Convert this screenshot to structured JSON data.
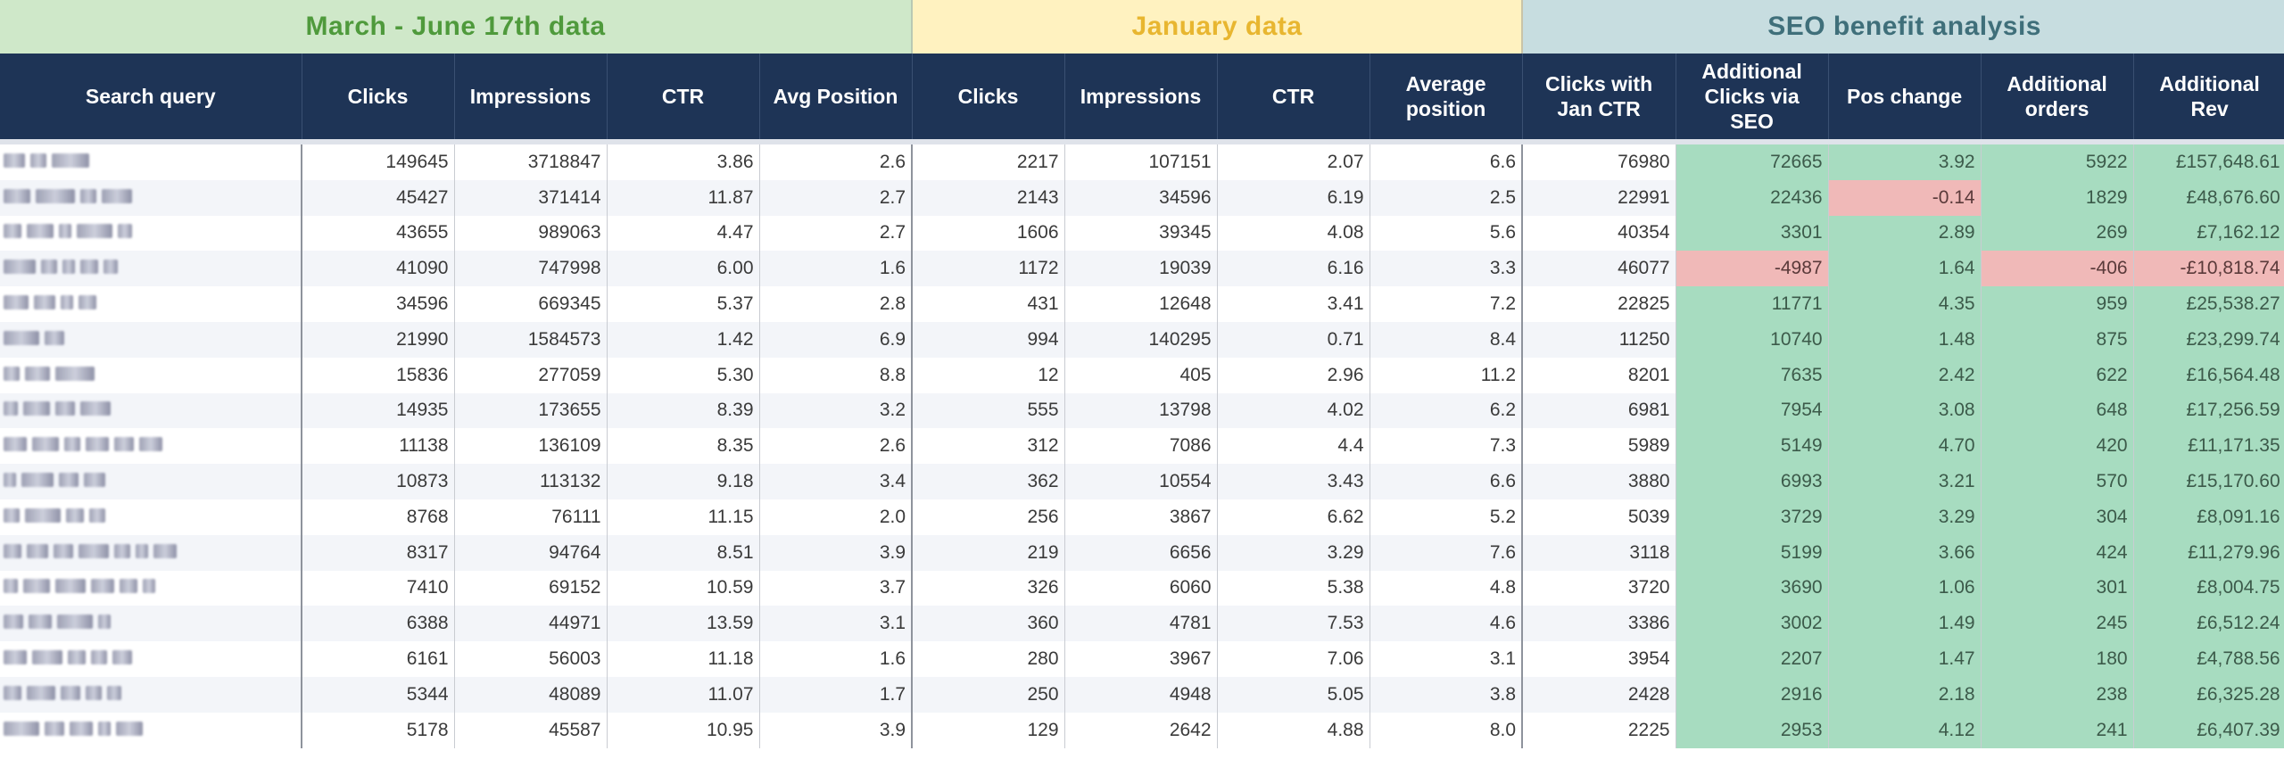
{
  "sections": {
    "march": "March - June 17th data",
    "january": "January data",
    "seo": "SEO benefit analysis"
  },
  "headers": [
    "Search query",
    "Clicks",
    "Impressions",
    "CTR",
    "Avg Position",
    "Clicks",
    "Impressions",
    "CTR",
    "Average position",
    "Clicks with Jan CTR",
    "Additional Clicks via SEO",
    "Pos change",
    "Additional orders",
    "Additional Rev"
  ],
  "colors": {
    "header_bg": "#1e3456",
    "positive": "#a7dcc0",
    "negative": "#f0b9b8"
  },
  "query_note": "Search query text is redacted (blurred) in the screenshot",
  "rows": [
    {
      "mc": "149645",
      "mi": "3718847",
      "mctr": "3.86",
      "mpos": "2.6",
      "jc": "2217",
      "ji": "107151",
      "jctr": "2.07",
      "jpos": "6.6",
      "cj": "76980",
      "add": "72665",
      "pos": "3.92",
      "ord": "5922",
      "rev": "£157,648.61",
      "add_neg": false,
      "pos_neg": false,
      "ord_neg": false,
      "rev_neg": false
    },
    {
      "mc": "45427",
      "mi": "371414",
      "mctr": "11.87",
      "mpos": "2.7",
      "jc": "2143",
      "ji": "34596",
      "jctr": "6.19",
      "jpos": "2.5",
      "cj": "22991",
      "add": "22436",
      "pos": "-0.14",
      "ord": "1829",
      "rev": "£48,676.60",
      "add_neg": false,
      "pos_neg": true,
      "ord_neg": false,
      "rev_neg": false
    },
    {
      "mc": "43655",
      "mi": "989063",
      "mctr": "4.47",
      "mpos": "2.7",
      "jc": "1606",
      "ji": "39345",
      "jctr": "4.08",
      "jpos": "5.6",
      "cj": "40354",
      "add": "3301",
      "pos": "2.89",
      "ord": "269",
      "rev": "£7,162.12",
      "add_neg": false,
      "pos_neg": false,
      "ord_neg": false,
      "rev_neg": false
    },
    {
      "mc": "41090",
      "mi": "747998",
      "mctr": "6.00",
      "mpos": "1.6",
      "jc": "1172",
      "ji": "19039",
      "jctr": "6.16",
      "jpos": "3.3",
      "cj": "46077",
      "add": "-4987",
      "pos": "1.64",
      "ord": "-406",
      "rev": "-£10,818.74",
      "add_neg": true,
      "pos_neg": false,
      "ord_neg": true,
      "rev_neg": true
    },
    {
      "mc": "34596",
      "mi": "669345",
      "mctr": "5.37",
      "mpos": "2.8",
      "jc": "431",
      "ji": "12648",
      "jctr": "3.41",
      "jpos": "7.2",
      "cj": "22825",
      "add": "11771",
      "pos": "4.35",
      "ord": "959",
      "rev": "£25,538.27",
      "add_neg": false,
      "pos_neg": false,
      "ord_neg": false,
      "rev_neg": false
    },
    {
      "mc": "21990",
      "mi": "1584573",
      "mctr": "1.42",
      "mpos": "6.9",
      "jc": "994",
      "ji": "140295",
      "jctr": "0.71",
      "jpos": "8.4",
      "cj": "11250",
      "add": "10740",
      "pos": "1.48",
      "ord": "875",
      "rev": "£23,299.74",
      "add_neg": false,
      "pos_neg": false,
      "ord_neg": false,
      "rev_neg": false
    },
    {
      "mc": "15836",
      "mi": "277059",
      "mctr": "5.30",
      "mpos": "8.8",
      "jc": "12",
      "ji": "405",
      "jctr": "2.96",
      "jpos": "11.2",
      "cj": "8201",
      "add": "7635",
      "pos": "2.42",
      "ord": "622",
      "rev": "£16,564.48",
      "add_neg": false,
      "pos_neg": false,
      "ord_neg": false,
      "rev_neg": false
    },
    {
      "mc": "14935",
      "mi": "173655",
      "mctr": "8.39",
      "mpos": "3.2",
      "jc": "555",
      "ji": "13798",
      "jctr": "4.02",
      "jpos": "6.2",
      "cj": "6981",
      "add": "7954",
      "pos": "3.08",
      "ord": "648",
      "rev": "£17,256.59",
      "add_neg": false,
      "pos_neg": false,
      "ord_neg": false,
      "rev_neg": false
    },
    {
      "mc": "11138",
      "mi": "136109",
      "mctr": "8.35",
      "mpos": "2.6",
      "jc": "312",
      "ji": "7086",
      "jctr": "4.4",
      "jpos": "7.3",
      "cj": "5989",
      "add": "5149",
      "pos": "4.70",
      "ord": "420",
      "rev": "£11,171.35",
      "add_neg": false,
      "pos_neg": false,
      "ord_neg": false,
      "rev_neg": false
    },
    {
      "mc": "10873",
      "mi": "113132",
      "mctr": "9.18",
      "mpos": "3.4",
      "jc": "362",
      "ji": "10554",
      "jctr": "3.43",
      "jpos": "6.6",
      "cj": "3880",
      "add": "6993",
      "pos": "3.21",
      "ord": "570",
      "rev": "£15,170.60",
      "add_neg": false,
      "pos_neg": false,
      "ord_neg": false,
      "rev_neg": false
    },
    {
      "mc": "8768",
      "mi": "76111",
      "mctr": "11.15",
      "mpos": "2.0",
      "jc": "256",
      "ji": "3867",
      "jctr": "6.62",
      "jpos": "5.2",
      "cj": "5039",
      "add": "3729",
      "pos": "3.29",
      "ord": "304",
      "rev": "£8,091.16",
      "add_neg": false,
      "pos_neg": false,
      "ord_neg": false,
      "rev_neg": false
    },
    {
      "mc": "8317",
      "mi": "94764",
      "mctr": "8.51",
      "mpos": "3.9",
      "jc": "219",
      "ji": "6656",
      "jctr": "3.29",
      "jpos": "7.6",
      "cj": "3118",
      "add": "5199",
      "pos": "3.66",
      "ord": "424",
      "rev": "£11,279.96",
      "add_neg": false,
      "pos_neg": false,
      "ord_neg": false,
      "rev_neg": false
    },
    {
      "mc": "7410",
      "mi": "69152",
      "mctr": "10.59",
      "mpos": "3.7",
      "jc": "326",
      "ji": "6060",
      "jctr": "5.38",
      "jpos": "4.8",
      "cj": "3720",
      "add": "3690",
      "pos": "1.06",
      "ord": "301",
      "rev": "£8,004.75",
      "add_neg": false,
      "pos_neg": false,
      "ord_neg": false,
      "rev_neg": false
    },
    {
      "mc": "6388",
      "mi": "44971",
      "mctr": "13.59",
      "mpos": "3.1",
      "jc": "360",
      "ji": "4781",
      "jctr": "7.53",
      "jpos": "4.6",
      "cj": "3386",
      "add": "3002",
      "pos": "1.49",
      "ord": "245",
      "rev": "£6,512.24",
      "add_neg": false,
      "pos_neg": false,
      "ord_neg": false,
      "rev_neg": false
    },
    {
      "mc": "6161",
      "mi": "56003",
      "mctr": "11.18",
      "mpos": "1.6",
      "jc": "280",
      "ji": "3967",
      "jctr": "7.06",
      "jpos": "3.1",
      "cj": "3954",
      "add": "2207",
      "pos": "1.47",
      "ord": "180",
      "rev": "£4,788.56",
      "add_neg": false,
      "pos_neg": false,
      "ord_neg": false,
      "rev_neg": false
    },
    {
      "mc": "5344",
      "mi": "48089",
      "mctr": "11.07",
      "mpos": "1.7",
      "jc": "250",
      "ji": "4948",
      "jctr": "5.05",
      "jpos": "3.8",
      "cj": "2428",
      "add": "2916",
      "pos": "2.18",
      "ord": "238",
      "rev": "£6,325.28",
      "add_neg": false,
      "pos_neg": false,
      "ord_neg": false,
      "rev_neg": false
    },
    {
      "mc": "5178",
      "mi": "45587",
      "mctr": "10.95",
      "mpos": "3.9",
      "jc": "129",
      "ji": "2642",
      "jctr": "4.88",
      "jpos": "8.0",
      "cj": "2225",
      "add": "2953",
      "pos": "4.12",
      "ord": "241",
      "rev": "£6,407.39",
      "add_neg": false,
      "pos_neg": false,
      "ord_neg": false,
      "rev_neg": false
    }
  ]
}
